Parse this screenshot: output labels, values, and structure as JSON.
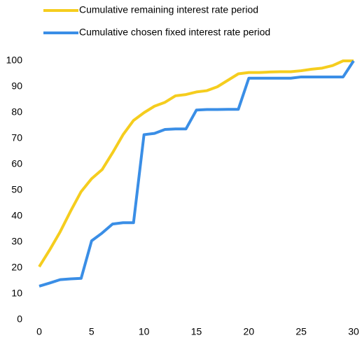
{
  "chart_data": {
    "type": "line",
    "x": [
      0,
      1,
      2,
      3,
      4,
      5,
      6,
      7,
      8,
      9,
      10,
      11,
      12,
      13,
      14,
      15,
      16,
      17,
      18,
      19,
      20,
      21,
      22,
      23,
      24,
      25,
      26,
      27,
      28,
      29,
      30
    ],
    "series": [
      {
        "name": "Cumulative remaining interest rate period",
        "color": "#f5cd1e",
        "values": [
          20.5,
          27,
          34,
          42,
          49.5,
          54.5,
          58,
          64.5,
          71.5,
          77,
          80,
          82.5,
          84,
          86.5,
          87,
          88,
          88.5,
          90,
          92.5,
          95,
          95.5,
          95.5,
          95.7,
          95.8,
          95.8,
          96.2,
          96.8,
          97.2,
          98.2,
          100,
          100
        ]
      },
      {
        "name": "Cumulative chosen fixed interest rate period",
        "color": "#3a8ee6",
        "values": [
          13,
          14.2,
          15.5,
          15.8,
          16,
          30.5,
          33.5,
          37,
          37.5,
          37.5,
          71.5,
          72,
          73.5,
          73.7,
          73.7,
          81,
          81.2,
          81.2,
          81.3,
          81.3,
          93.3,
          93.3,
          93.3,
          93.3,
          93.3,
          93.8,
          93.8,
          93.8,
          93.8,
          93.8,
          100
        ]
      }
    ],
    "xlim": [
      0,
      30
    ],
    "xticks": [
      0,
      5,
      10,
      15,
      20,
      25,
      30
    ],
    "ylim": [
      0,
      100
    ],
    "yticks": [
      0,
      10,
      20,
      30,
      40,
      50,
      60,
      70,
      80,
      90,
      100
    ],
    "legend": "top"
  }
}
